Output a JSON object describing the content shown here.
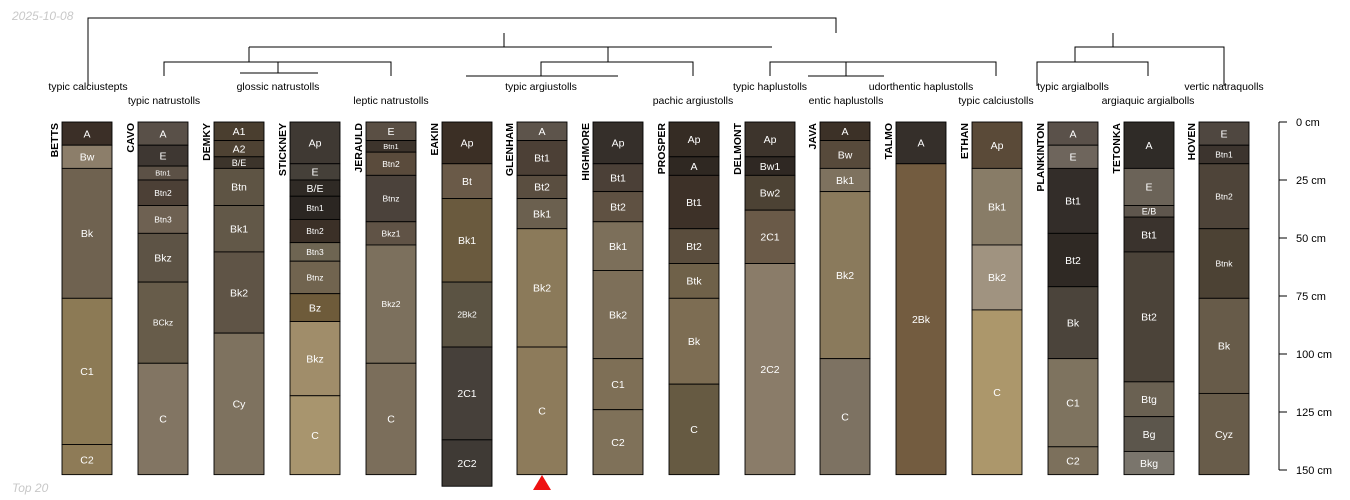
{
  "date": "2025-10-08",
  "subset": "Top 20",
  "depth_axis": {
    "unit": "cm",
    "max": 150,
    "ticks": [
      {
        "value": 0,
        "label": "0 cm"
      },
      {
        "value": 25,
        "label": "25 cm"
      },
      {
        "value": 50,
        "label": "50 cm"
      },
      {
        "value": 75,
        "label": "75 cm"
      },
      {
        "value": 100,
        "label": "100 cm"
      },
      {
        "value": 125,
        "label": "125 cm"
      },
      {
        "value": 150,
        "label": "150 cm"
      }
    ]
  },
  "taxa_labels": [
    {
      "text": "typic calciustepts"
    },
    {
      "text": "typic natrustolls"
    },
    {
      "text": "glossic natrustolls"
    },
    {
      "text": "leptic natrustolls"
    },
    {
      "text": "typic argiustolls"
    },
    {
      "text": "pachic argiustolls"
    },
    {
      "text": "typic haplustolls"
    },
    {
      "text": "entic haplustolls"
    },
    {
      "text": "udorthentic haplustolls"
    },
    {
      "text": "typic calciustolls"
    },
    {
      "text": "typic argialbolls"
    },
    {
      "text": "argiaquic argialbolls"
    },
    {
      "text": "vertic natraquolls"
    }
  ],
  "marker": {
    "profile": "GLENHAM",
    "color": "#ee1111"
  },
  "profiles": [
    {
      "name": "BETTS",
      "horizons": [
        {
          "name": "A",
          "top": 0,
          "bottom": 10,
          "color": "#3b2f27"
        },
        {
          "name": "Bw",
          "top": 10,
          "bottom": 20,
          "color": "#8c7e6a"
        },
        {
          "name": "Bk",
          "top": 20,
          "bottom": 76,
          "color": "#6f6250"
        },
        {
          "name": "C1",
          "top": 76,
          "bottom": 139,
          "color": "#8c7a55"
        },
        {
          "name": "C2",
          "top": 139,
          "bottom": 152,
          "color": "#8e7b57"
        }
      ]
    },
    {
      "name": "CAVO",
      "horizons": [
        {
          "name": "A",
          "top": 0,
          "bottom": 10,
          "color": "#595048"
        },
        {
          "name": "E",
          "top": 10,
          "bottom": 19,
          "color": "#3e3732"
        },
        {
          "name": "Btn1",
          "top": 19,
          "bottom": 25,
          "color": "#5c5146"
        },
        {
          "name": "Btn2",
          "top": 25,
          "bottom": 36,
          "color": "#4c4036"
        },
        {
          "name": "Btn3",
          "top": 36,
          "bottom": 48,
          "color": "#6e6152"
        },
        {
          "name": "Bkz",
          "top": 48,
          "bottom": 69,
          "color": "#5d5345"
        },
        {
          "name": "BCkz",
          "top": 69,
          "bottom": 104,
          "color": "#675c4a"
        },
        {
          "name": "C",
          "top": 104,
          "bottom": 152,
          "color": "#827563"
        }
      ]
    },
    {
      "name": "DEMKY",
      "horizons": [
        {
          "name": "A1",
          "top": 0,
          "bottom": 8,
          "color": "#4a3e2f"
        },
        {
          "name": "A2",
          "top": 8,
          "bottom": 15,
          "color": "#4e4233"
        },
        {
          "name": "B/E",
          "top": 15,
          "bottom": 20,
          "color": "#3c342b"
        },
        {
          "name": "Btn",
          "top": 20,
          "bottom": 36,
          "color": "#5e5444"
        },
        {
          "name": "Bk1",
          "top": 36,
          "bottom": 56,
          "color": "#625848"
        },
        {
          "name": "Bk2",
          "top": 56,
          "bottom": 91,
          "color": "#5f5446"
        },
        {
          "name": "Cy",
          "top": 91,
          "bottom": 152,
          "color": "#7e725f"
        }
      ]
    },
    {
      "name": "STICKNEY",
      "horizons": [
        {
          "name": "Ap",
          "top": 0,
          "bottom": 18,
          "color": "#3f3933"
        },
        {
          "name": "E",
          "top": 18,
          "bottom": 25,
          "color": "#454039"
        },
        {
          "name": "B/E",
          "top": 25,
          "bottom": 32,
          "color": "#2f2a25"
        },
        {
          "name": "Btn1",
          "top": 32,
          "bottom": 42,
          "color": "#2b2622"
        },
        {
          "name": "Btn2",
          "top": 42,
          "bottom": 52,
          "color": "#3b3027"
        },
        {
          "name": "Btn3",
          "top": 52,
          "bottom": 60,
          "color": "#6e6552"
        },
        {
          "name": "Btnz",
          "top": 60,
          "bottom": 74,
          "color": "#71644f"
        },
        {
          "name": "Bz",
          "top": 74,
          "bottom": 86,
          "color": "#6e5b3a"
        },
        {
          "name": "Bkz",
          "top": 86,
          "bottom": 118,
          "color": "#a08d6a"
        },
        {
          "name": "C",
          "top": 118,
          "bottom": 152,
          "color": "#a8956e"
        }
      ]
    },
    {
      "name": "JERAULD",
      "horizons": [
        {
          "name": "E",
          "top": 0,
          "bottom": 8,
          "color": "#5a4f44"
        },
        {
          "name": "Btn1",
          "top": 8,
          "bottom": 13,
          "color": "#3d342c"
        },
        {
          "name": "Btn2",
          "top": 13,
          "bottom": 23,
          "color": "#5a4b3c"
        },
        {
          "name": "Btnz",
          "top": 23,
          "bottom": 43,
          "color": "#4b423b"
        },
        {
          "name": "Bkz1",
          "top": 43,
          "bottom": 53,
          "color": "#605346"
        },
        {
          "name": "Bkz2",
          "top": 53,
          "bottom": 104,
          "color": "#7c705d"
        },
        {
          "name": "C",
          "top": 104,
          "bottom": 152,
          "color": "#7b6e5b"
        }
      ]
    },
    {
      "name": "EAKIN",
      "horizons": [
        {
          "name": "Ap",
          "top": 0,
          "bottom": 18,
          "color": "#3b2f25"
        },
        {
          "name": "Bt",
          "top": 18,
          "bottom": 33,
          "color": "#6a5a48"
        },
        {
          "name": "Bk1",
          "top": 33,
          "bottom": 69,
          "color": "#6a5a3e"
        },
        {
          "name": "2Bk2",
          "top": 69,
          "bottom": 97,
          "color": "#5b5343"
        },
        {
          "name": "2C1",
          "top": 97,
          "bottom": 137,
          "color": "#46403a"
        },
        {
          "name": "2C2",
          "top": 137,
          "bottom": 157,
          "color": "#3f3a35"
        }
      ]
    },
    {
      "name": "GLENHAM",
      "horizons": [
        {
          "name": "A",
          "top": 0,
          "bottom": 8,
          "color": "#5d544b"
        },
        {
          "name": "Bt1",
          "top": 8,
          "bottom": 23,
          "color": "#4c4036"
        },
        {
          "name": "Bt2",
          "top": 23,
          "bottom": 33,
          "color": "#5a4e40"
        },
        {
          "name": "Bk1",
          "top": 33,
          "bottom": 46,
          "color": "#6b604f"
        },
        {
          "name": "Bk2",
          "top": 46,
          "bottom": 97,
          "color": "#8b7a5a"
        },
        {
          "name": "C",
          "top": 97,
          "bottom": 152,
          "color": "#8d7b5b"
        }
      ]
    },
    {
      "name": "HIGHMORE",
      "horizons": [
        {
          "name": "Ap",
          "top": 0,
          "bottom": 18,
          "color": "#352f2a"
        },
        {
          "name": "Bt1",
          "top": 18,
          "bottom": 30,
          "color": "#4b4037"
        },
        {
          "name": "Bt2",
          "top": 30,
          "bottom": 43,
          "color": "#5f5142"
        },
        {
          "name": "Bk1",
          "top": 43,
          "bottom": 64,
          "color": "#7c6f5a"
        },
        {
          "name": "Bk2",
          "top": 64,
          "bottom": 102,
          "color": "#7d6f59"
        },
        {
          "name": "C1",
          "top": 102,
          "bottom": 124,
          "color": "#7e6f56"
        },
        {
          "name": "C2",
          "top": 124,
          "bottom": 152,
          "color": "#7f7159"
        }
      ]
    },
    {
      "name": "PROSPER",
      "horizons": [
        {
          "name": "Ap",
          "top": 0,
          "bottom": 15,
          "color": "#352c24"
        },
        {
          "name": "A",
          "top": 15,
          "bottom": 23,
          "color": "#2f2822"
        },
        {
          "name": "Bt1",
          "top": 23,
          "bottom": 46,
          "color": "#3d3128"
        },
        {
          "name": "Bt2",
          "top": 46,
          "bottom": 61,
          "color": "#5a4d3d"
        },
        {
          "name": "Btk",
          "top": 61,
          "bottom": 76,
          "color": "#6f6149"
        },
        {
          "name": "Bk",
          "top": 76,
          "bottom": 113,
          "color": "#7d6d53"
        },
        {
          "name": "C",
          "top": 113,
          "bottom": 152,
          "color": "#665a42"
        }
      ]
    },
    {
      "name": "DELMONT",
      "horizons": [
        {
          "name": "Ap",
          "top": 0,
          "bottom": 15,
          "color": "#3d342c"
        },
        {
          "name": "Bw1",
          "top": 15,
          "bottom": 23,
          "color": "#2f2823"
        },
        {
          "name": "Bw2",
          "top": 23,
          "bottom": 38,
          "color": "#4c4234"
        },
        {
          "name": "2C1",
          "top": 38,
          "bottom": 61,
          "color": "#6a5a48"
        },
        {
          "name": "2C2",
          "top": 61,
          "bottom": 152,
          "color": "#8a7c69"
        }
      ]
    },
    {
      "name": "JAVA",
      "horizons": [
        {
          "name": "A",
          "top": 0,
          "bottom": 8,
          "color": "#3c3127"
        },
        {
          "name": "Bw",
          "top": 8,
          "bottom": 20,
          "color": "#574a3b"
        },
        {
          "name": "Bk1",
          "top": 20,
          "bottom": 30,
          "color": "#7e725f"
        },
        {
          "name": "Bk2",
          "top": 30,
          "bottom": 102,
          "color": "#8a7a5c"
        },
        {
          "name": "C",
          "top": 102,
          "bottom": 152,
          "color": "#7d7262"
        }
      ]
    },
    {
      "name": "TALMO",
      "horizons": [
        {
          "name": "A",
          "top": 0,
          "bottom": 18,
          "color": "#352f2a"
        },
        {
          "name": "2Bk",
          "top": 18,
          "bottom": 152,
          "color": "#735c40"
        }
      ]
    },
    {
      "name": "ETHAN",
      "horizons": [
        {
          "name": "Ap",
          "top": 0,
          "bottom": 20,
          "color": "#5a4a38"
        },
        {
          "name": "Bk1",
          "top": 20,
          "bottom": 53,
          "color": "#887c67"
        },
        {
          "name": "Bk2",
          "top": 53,
          "bottom": 81,
          "color": "#a09380"
        },
        {
          "name": "C",
          "top": 81,
          "bottom": 152,
          "color": "#ac976b"
        }
      ]
    },
    {
      "name": "PLANKINTON",
      "horizons": [
        {
          "name": "A",
          "top": 0,
          "bottom": 10,
          "color": "#5a514a"
        },
        {
          "name": "E",
          "top": 10,
          "bottom": 20,
          "color": "#6e655c"
        },
        {
          "name": "Bt1",
          "top": 20,
          "bottom": 48,
          "color": "#332d29"
        },
        {
          "name": "Bt2",
          "top": 48,
          "bottom": 71,
          "color": "#2f2924"
        },
        {
          "name": "Bk",
          "top": 71,
          "bottom": 102,
          "color": "#4b443b"
        },
        {
          "name": "C1",
          "top": 102,
          "bottom": 140,
          "color": "#7e735f"
        },
        {
          "name": "C2",
          "top": 140,
          "bottom": 152,
          "color": "#7c705c"
        }
      ]
    },
    {
      "name": "TETONKA",
      "horizons": [
        {
          "name": "A",
          "top": 0,
          "bottom": 20,
          "color": "#2f2b27"
        },
        {
          "name": "E",
          "top": 20,
          "bottom": 36,
          "color": "#6b6358"
        },
        {
          "name": "E/B",
          "top": 36,
          "bottom": 41,
          "color": "#5e564d"
        },
        {
          "name": "Bt1",
          "top": 41,
          "bottom": 56,
          "color": "#3a332d"
        },
        {
          "name": "Bt2",
          "top": 56,
          "bottom": 112,
          "color": "#4b4339"
        },
        {
          "name": "Btg",
          "top": 112,
          "bottom": 127,
          "color": "#6a6152"
        },
        {
          "name": "Bg",
          "top": 127,
          "bottom": 142,
          "color": "#5c564c"
        },
        {
          "name": "Bkg",
          "top": 142,
          "bottom": 152,
          "color": "#7a756c"
        }
      ]
    },
    {
      "name": "HOVEN",
      "horizons": [
        {
          "name": "E",
          "top": 0,
          "bottom": 10,
          "color": "#4f4740"
        },
        {
          "name": "Btn1",
          "top": 10,
          "bottom": 18,
          "color": "#3c342e"
        },
        {
          "name": "Btn2",
          "top": 18,
          "bottom": 46,
          "color": "#4e4439"
        },
        {
          "name": "Btnk",
          "top": 46,
          "bottom": 76,
          "color": "#4c4234"
        },
        {
          "name": "Bk",
          "top": 76,
          "bottom": 117,
          "color": "#675b49"
        },
        {
          "name": "Cyz",
          "top": 117,
          "bottom": 152,
          "color": "#685c4a"
        }
      ]
    }
  ]
}
